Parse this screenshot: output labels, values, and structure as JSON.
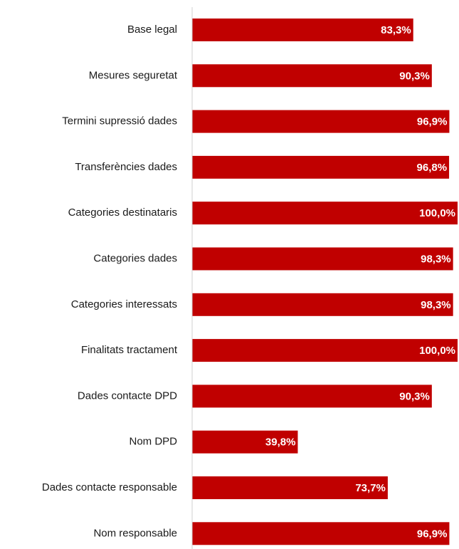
{
  "chart_data": {
    "type": "hbar",
    "categories": [
      "Base legal",
      "Mesures seguretat",
      "Termini supressió dades",
      "Transferències dades",
      "Categories destinataris",
      "Categories dades",
      "Categories interessats",
      "Finalitats tractament",
      "Dades contacte DPD",
      "Nom DPD",
      "Dades contacte responsable",
      "Nom responsable"
    ],
    "values": [
      83.3,
      90.3,
      96.9,
      96.8,
      100.0,
      98.3,
      98.3,
      100.0,
      90.3,
      39.8,
      73.7,
      96.9
    ],
    "value_labels": [
      "83,3%",
      "90,3%",
      "96,9%",
      "96,8%",
      "100,0%",
      "98,3%",
      "98,3%",
      "100,0%",
      "90,3%",
      "39,8%",
      "73,7%",
      "96,9%"
    ],
    "color": "#c00000",
    "xlim": [
      0,
      100
    ]
  }
}
